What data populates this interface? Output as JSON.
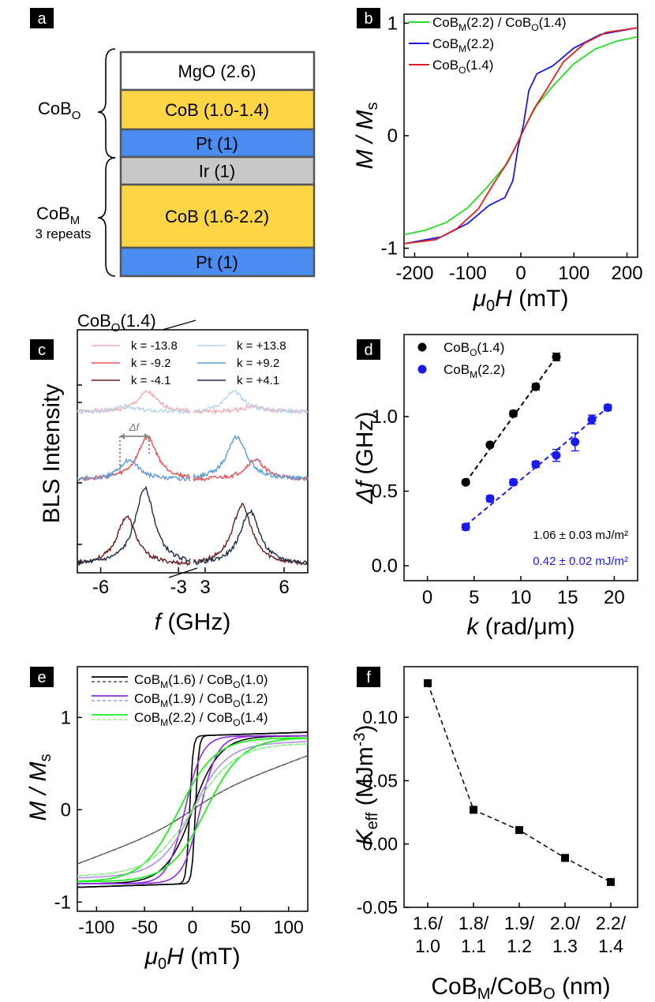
{
  "panels": {
    "a": {
      "label": "a",
      "layers": [
        {
          "text": "MgO (2.6)",
          "color": "#ffffff"
        },
        {
          "text": "CoB (1.0-1.4)",
          "color": "#fdd545"
        },
        {
          "text": "Pt (1)",
          "color": "#4a8cf0"
        },
        {
          "text": "Ir (1)",
          "color": "#c8c8c8"
        },
        {
          "text": "CoB (1.6-2.2)",
          "color": "#fdd545"
        },
        {
          "text": "Pt (1)",
          "color": "#4a8cf0"
        }
      ],
      "group_top": {
        "main": "CoB",
        "sub": "O"
      },
      "group_bottom": {
        "main": "CoB",
        "sub": "M",
        "note": "3 repeats"
      }
    },
    "b": {
      "label": "b"
    },
    "c": {
      "label": "c",
      "sample_main": "CoB",
      "sample_sub": "O",
      "sample_rest": "(1.4)",
      "delta_label": "Δf"
    },
    "d": {
      "label": "d",
      "annot1": "1.06 ± 0.03 mJ/m²",
      "annot2": "0.42 ± 0.02 mJ/m²"
    },
    "e": {
      "label": "e"
    },
    "f": {
      "label": "f"
    }
  },
  "chart_data": [
    {
      "id": "b",
      "type": "line",
      "xlabel": "μ0H (mT)",
      "ylabel": "M / Ms",
      "xlim": [
        -220,
        220
      ],
      "ylim": [
        -1.08,
        1.08
      ],
      "xticks": [
        -200,
        -100,
        0,
        100,
        200
      ],
      "yticks": [
        -1,
        0,
        1
      ],
      "legend_position": "top-left",
      "series": [
        {
          "name": "CoBM(2.2) / CoBO(1.4)",
          "color": "#22dd22",
          "x": [
            -220,
            -180,
            -140,
            -100,
            -60,
            -30,
            -10,
            0,
            10,
            30,
            60,
            100,
            140,
            180,
            220
          ],
          "y": [
            -0.88,
            -0.84,
            -0.77,
            -0.64,
            -0.44,
            -0.27,
            -0.1,
            0.0,
            0.1,
            0.27,
            0.44,
            0.64,
            0.77,
            0.84,
            0.88
          ]
        },
        {
          "name": "CoBM(2.2)",
          "color": "#1a1ae0",
          "x": [
            -220,
            -150,
            -100,
            -60,
            -30,
            -15,
            -5,
            0,
            5,
            15,
            30,
            60,
            100,
            150,
            220
          ],
          "y": [
            -0.96,
            -0.9,
            -0.78,
            -0.62,
            -0.55,
            -0.4,
            -0.1,
            0.0,
            0.1,
            0.4,
            0.55,
            0.62,
            0.78,
            0.9,
            0.96
          ]
        },
        {
          "name": "CoBO(1.4)",
          "color": "#e02020",
          "x": [
            -220,
            -160,
            -120,
            -80,
            -50,
            -25,
            -10,
            0,
            10,
            25,
            50,
            80,
            120,
            160,
            220
          ],
          "y": [
            -0.96,
            -0.92,
            -0.82,
            -0.65,
            -0.42,
            -0.24,
            -0.1,
            0.0,
            0.1,
            0.24,
            0.42,
            0.65,
            0.82,
            0.92,
            0.96
          ]
        }
      ]
    },
    {
      "id": "c",
      "type": "line",
      "xlabel": "f (GHz)",
      "ylabel": "BLS Intensity",
      "xticks_left": [
        -6,
        -3
      ],
      "xticks_right": [
        3,
        6
      ],
      "series": [
        {
          "name": "k = -13.8",
          "color": "#f2a8ae",
          "offset": 3,
          "peaks": [
            -4.2,
            4.8
          ],
          "amps": [
            0.35,
            0.1
          ]
        },
        {
          "name": "k = +13.8",
          "color": "#b8d4ec",
          "offset": 3,
          "peaks": [
            -5.0,
            4.1
          ],
          "amps": [
            0.1,
            0.35
          ]
        },
        {
          "name": "k = -9.2",
          "color": "#e84f4f",
          "offset": 2,
          "peaks": [
            -4.2,
            4.9
          ],
          "amps": [
            0.75,
            0.35
          ]
        },
        {
          "name": "k = +9.2",
          "color": "#5a9ad8",
          "offset": 2,
          "peaks": [
            -4.9,
            4.2
          ],
          "amps": [
            0.35,
            0.75
          ]
        },
        {
          "name": "k = -4.1",
          "color": "#6a1a1a",
          "offset": 0,
          "peaks": [
            -5.0,
            4.4
          ],
          "amps": [
            0.85,
            1.05
          ]
        },
        {
          "name": "k = +4.1",
          "color": "#1a2e48",
          "offset": 0,
          "peaks": [
            -4.3,
            4.7
          ],
          "amps": [
            1.35,
            0.95
          ]
        }
      ]
    },
    {
      "id": "d",
      "type": "scatter",
      "xlabel": "k (rad/μm)",
      "ylabel": "Δf (GHz)",
      "xlim": [
        -2.5,
        22.5
      ],
      "ylim": [
        -0.1,
        1.55
      ],
      "xticks": [
        0,
        5,
        10,
        15,
        20
      ],
      "yticks": [
        0.0,
        0.5,
        1.0
      ],
      "legend_position": "top-left",
      "series": [
        {
          "name": "CoBO(1.4)",
          "color": "#000000",
          "x": [
            4.1,
            6.7,
            9.2,
            11.6,
            13.8
          ],
          "y": [
            0.56,
            0.81,
            1.02,
            1.2,
            1.4
          ],
          "err": [
            0.015,
            0.015,
            0.02,
            0.02,
            0.025
          ],
          "fit": [
            [
              4.1,
              0.56
            ],
            [
              13.8,
              1.4
            ]
          ]
        },
        {
          "name": "CoBM(2.2)",
          "color": "#1a1aee",
          "x": [
            4.1,
            6.7,
            9.2,
            11.6,
            13.8,
            15.8,
            17.6,
            19.3
          ],
          "y": [
            0.26,
            0.45,
            0.56,
            0.68,
            0.74,
            0.83,
            0.98,
            1.06
          ],
          "err": [
            0.02,
            0.02,
            0.02,
            0.02,
            0.04,
            0.06,
            0.03,
            0.02
          ],
          "fit": [
            [
              4.1,
              0.27
            ],
            [
              19.3,
              1.06
            ]
          ]
        }
      ]
    },
    {
      "id": "e",
      "type": "line",
      "xlabel": "μ0H (mT)",
      "ylabel": "M / Ms",
      "xlim": [
        -120,
        120
      ],
      "ylim": [
        -1.1,
        1.55
      ],
      "xticks": [
        -100,
        -50,
        0,
        50,
        100
      ],
      "yticks": [
        -1,
        0,
        1
      ],
      "legend_position": "top-left",
      "series": [
        {
          "name": "CoBM(1.6) / CoBO(1.0)",
          "color": "#000000"
        },
        {
          "name": "CoBM(1.9) / CoBO(1.2)",
          "color": "#8a2be2"
        },
        {
          "name": "CoBM(2.2) / CoBO(1.4)",
          "color": "#22ee22"
        }
      ]
    },
    {
      "id": "f",
      "type": "line",
      "xlabel": "CoBM/CoBO (nm)",
      "ylabel": "Keff (MJm-3)",
      "ylim": [
        -0.05,
        0.14
      ],
      "yticks": [
        -0.05,
        0.0,
        0.05,
        0.1
      ],
      "ytick_labels": [
        "-0.05",
        "0.00",
        "0.05",
        "0.10"
      ],
      "categories": [
        "1.6/ 1.0",
        "1.8/ 1.1",
        "1.9/ 1.2",
        "2.0/ 1.3",
        "2.2/ 1.4"
      ],
      "cat_top": [
        "1.6/",
        "1.8/",
        "1.9/",
        "2.0/",
        "2.2/"
      ],
      "cat_bottom": [
        "1.0",
        "1.1",
        "1.2",
        "1.3",
        "1.4"
      ],
      "values": [
        0.127,
        0.027,
        0.011,
        -0.011,
        -0.03
      ]
    }
  ]
}
